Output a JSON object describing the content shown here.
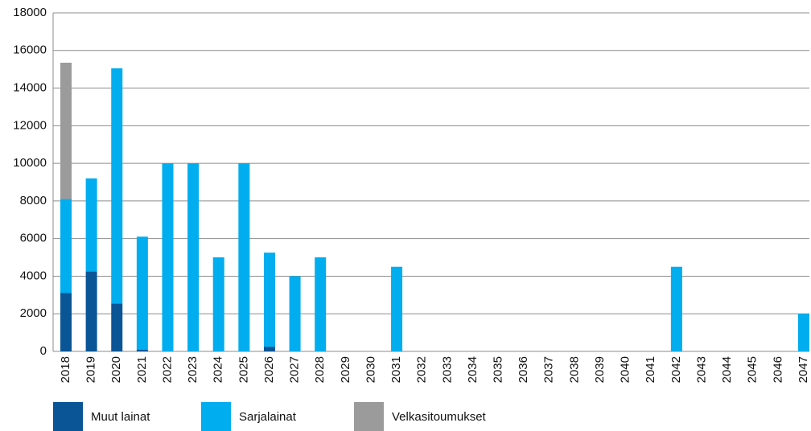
{
  "chart_data": {
    "type": "stacked_bar",
    "categories": [
      "2018",
      "2019",
      "2020",
      "2021",
      "2022",
      "2023",
      "2024",
      "2025",
      "2026",
      "2027",
      "2028",
      "2029",
      "2030",
      "2031",
      "2032",
      "2033",
      "2034",
      "2035",
      "2036",
      "2037",
      "2038",
      "2039",
      "2040",
      "2041",
      "2042",
      "2043",
      "2044",
      "2045",
      "2046",
      "2047"
    ],
    "series": [
      {
        "name": "Muut lainat",
        "color": "#0a5596",
        "values": [
          3100,
          4250,
          2550,
          100,
          0,
          0,
          0,
          0,
          250,
          0,
          0,
          0,
          0,
          0,
          0,
          0,
          0,
          0,
          0,
          0,
          0,
          0,
          0,
          0,
          0,
          0,
          0,
          0,
          0,
          0
        ]
      },
      {
        "name": "Sarjalainat",
        "color": "#00adef",
        "values": [
          5000,
          4950,
          12500,
          6000,
          10000,
          10000,
          5000,
          10000,
          5000,
          4000,
          5000,
          0,
          0,
          4500,
          0,
          0,
          0,
          0,
          0,
          0,
          0,
          0,
          0,
          0,
          4500,
          0,
          0,
          0,
          0,
          2000
        ]
      },
      {
        "name": "Velkasitoumukset",
        "color": "#9b9b9b",
        "values": [
          7250,
          0,
          0,
          0,
          0,
          0,
          0,
          0,
          0,
          0,
          0,
          0,
          0,
          0,
          0,
          0,
          0,
          0,
          0,
          0,
          0,
          0,
          0,
          0,
          0,
          0,
          0,
          0,
          0,
          0
        ]
      }
    ],
    "ylim": [
      0,
      18000
    ],
    "yticks": [
      0,
      2000,
      4000,
      6000,
      8000,
      10000,
      12000,
      14000,
      16000,
      18000
    ],
    "grid": true,
    "legend": "bottom"
  }
}
